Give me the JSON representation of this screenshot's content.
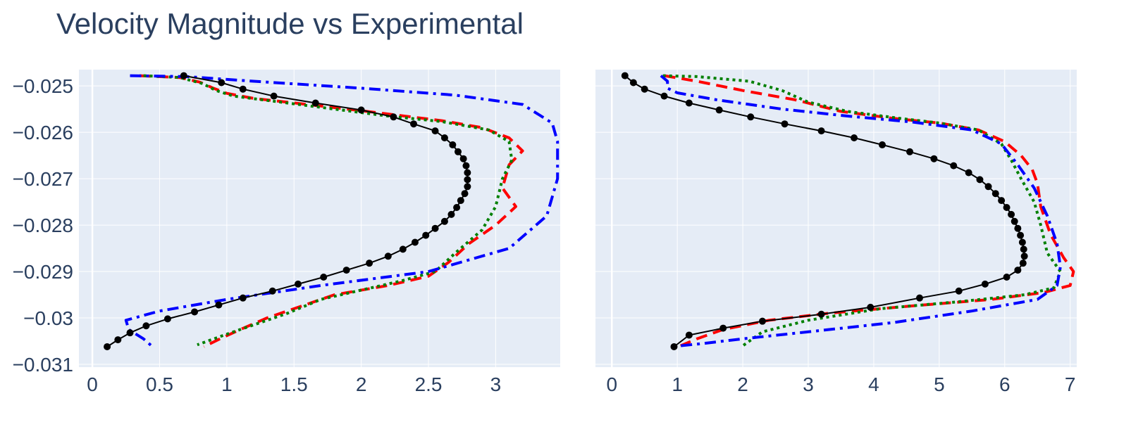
{
  "title": "Velocity Magnitude vs Experimental",
  "colors": {
    "plot_bg": "#e5ecf6",
    "grid": "#ffffff",
    "text": "#2a3f5f",
    "experimental": "#000000",
    "red_dash": "#ff0000",
    "green_dot": "#008000",
    "blue_dashdot": "#0000ff"
  },
  "chart_data": [
    {
      "type": "line",
      "xlim": [
        -0.1,
        3.48
      ],
      "ylim": [
        -0.03106,
        -0.02465
      ],
      "xticks": [
        0,
        0.5,
        1,
        1.5,
        2,
        2.5,
        3
      ],
      "xtick_labels": [
        "0",
        "0.5",
        "1",
        "1.5",
        "2",
        "2.5",
        "3"
      ],
      "yticks": [
        -0.025,
        -0.026,
        -0.027,
        -0.028,
        -0.029,
        -0.03,
        -0.031
      ],
      "ytick_labels": [
        "−0.025",
        "−0.026",
        "−0.027",
        "−0.028",
        "−0.029",
        "−0.03",
        "−0.031"
      ],
      "series": [
        {
          "style": "experimental",
          "points": [
            [
              0.68,
              -0.02478
            ],
            [
              0.96,
              -0.02493
            ],
            [
              1.12,
              -0.02507
            ],
            [
              1.35,
              -0.02522
            ],
            [
              1.66,
              -0.02537
            ],
            [
              2.0,
              -0.02552
            ],
            [
              2.24,
              -0.02567
            ],
            [
              2.39,
              -0.02582
            ],
            [
              2.55,
              -0.02597
            ],
            [
              2.62,
              -0.02612
            ],
            [
              2.68,
              -0.02627
            ],
            [
              2.72,
              -0.02642
            ],
            [
              2.76,
              -0.02657
            ],
            [
              2.78,
              -0.02672
            ],
            [
              2.79,
              -0.02687
            ],
            [
              2.79,
              -0.02702
            ],
            [
              2.79,
              -0.02717
            ],
            [
              2.77,
              -0.02732
            ],
            [
              2.74,
              -0.02747
            ],
            [
              2.71,
              -0.02762
            ],
            [
              2.67,
              -0.02777
            ],
            [
              2.62,
              -0.02792
            ],
            [
              2.55,
              -0.02807
            ],
            [
              2.48,
              -0.02822
            ],
            [
              2.4,
              -0.02837
            ],
            [
              2.31,
              -0.02852
            ],
            [
              2.2,
              -0.02867
            ],
            [
              2.06,
              -0.02882
            ],
            [
              1.89,
              -0.02897
            ],
            [
              1.72,
              -0.02912
            ],
            [
              1.53,
              -0.02927
            ],
            [
              1.34,
              -0.02942
            ],
            [
              1.12,
              -0.02957
            ],
            [
              0.94,
              -0.02972
            ],
            [
              0.76,
              -0.02987
            ],
            [
              0.56,
              -0.03002
            ],
            [
              0.4,
              -0.03017
            ],
            [
              0.28,
              -0.03032
            ],
            [
              0.19,
              -0.03047
            ],
            [
              0.11,
              -0.03062
            ]
          ]
        },
        {
          "style": "red_dash",
          "points": [
            [
              0.35,
              -0.02478
            ],
            [
              0.65,
              -0.02482
            ],
            [
              0.8,
              -0.02492
            ],
            [
              0.9,
              -0.02505
            ],
            [
              1.0,
              -0.02516
            ],
            [
              1.2,
              -0.02527
            ],
            [
              1.6,
              -0.0254
            ],
            [
              2.1,
              -0.02557
            ],
            [
              2.6,
              -0.02575
            ],
            [
              2.9,
              -0.0259
            ],
            [
              3.1,
              -0.02612
            ],
            [
              3.2,
              -0.0264
            ],
            [
              3.1,
              -0.0267
            ],
            [
              3.05,
              -0.0272
            ],
            [
              3.15,
              -0.0276
            ],
            [
              3.0,
              -0.028
            ],
            [
              2.8,
              -0.0284
            ],
            [
              2.65,
              -0.0288
            ],
            [
              2.5,
              -0.0291
            ],
            [
              2.2,
              -0.0293
            ],
            [
              1.8,
              -0.0295
            ],
            [
              1.5,
              -0.0298
            ],
            [
              1.3,
              -0.03
            ],
            [
              1.1,
              -0.03025
            ],
            [
              0.95,
              -0.03045
            ],
            [
              0.83,
              -0.03062
            ]
          ]
        },
        {
          "style": "green_dot",
          "points": [
            [
              0.38,
              -0.02478
            ],
            [
              0.65,
              -0.02482
            ],
            [
              0.82,
              -0.02495
            ],
            [
              0.92,
              -0.0251
            ],
            [
              1.05,
              -0.02522
            ],
            [
              1.4,
              -0.02535
            ],
            [
              1.8,
              -0.0255
            ],
            [
              2.2,
              -0.02565
            ],
            [
              2.6,
              -0.02577
            ],
            [
              2.95,
              -0.02595
            ],
            [
              3.1,
              -0.0262
            ],
            [
              3.12,
              -0.0266
            ],
            [
              3.05,
              -0.027
            ],
            [
              3.0,
              -0.0276
            ],
            [
              2.9,
              -0.0281
            ],
            [
              2.7,
              -0.0286
            ],
            [
              2.55,
              -0.029
            ],
            [
              2.3,
              -0.0292
            ],
            [
              2.0,
              -0.0294
            ],
            [
              1.7,
              -0.0296
            ],
            [
              1.45,
              -0.0299
            ],
            [
              1.2,
              -0.03015
            ],
            [
              1.0,
              -0.03035
            ],
            [
              0.78,
              -0.03058
            ]
          ]
        },
        {
          "style": "blue_dashdot",
          "points": [
            [
              0.28,
              -0.02478
            ],
            [
              0.7,
              -0.0248
            ],
            [
              1.2,
              -0.0249
            ],
            [
              2.0,
              -0.02505
            ],
            [
              2.7,
              -0.0252
            ],
            [
              3.2,
              -0.0254
            ],
            [
              3.42,
              -0.0258
            ],
            [
              3.46,
              -0.0262
            ],
            [
              3.46,
              -0.027
            ],
            [
              3.38,
              -0.0278
            ],
            [
              3.1,
              -0.0285
            ],
            [
              2.5,
              -0.029
            ],
            [
              1.7,
              -0.0293
            ],
            [
              1.0,
              -0.0296
            ],
            [
              0.5,
              -0.02985
            ],
            [
              0.25,
              -0.03005
            ],
            [
              0.27,
              -0.03025
            ],
            [
              0.38,
              -0.03045
            ],
            [
              0.44,
              -0.0306
            ]
          ]
        }
      ]
    },
    {
      "type": "line",
      "xlim": [
        -0.25,
        7.1
      ],
      "ylim": [
        -0.03106,
        -0.02465
      ],
      "xticks": [
        0,
        1,
        2,
        3,
        4,
        5,
        6,
        7
      ],
      "xtick_labels": [
        "0",
        "1",
        "2",
        "3",
        "4",
        "5",
        "6",
        "7"
      ],
      "series": [
        {
          "style": "experimental",
          "points": [
            [
              0.2,
              -0.02478
            ],
            [
              0.33,
              -0.02493
            ],
            [
              0.5,
              -0.02507
            ],
            [
              0.8,
              -0.02522
            ],
            [
              1.18,
              -0.02537
            ],
            [
              1.64,
              -0.02552
            ],
            [
              2.12,
              -0.02567
            ],
            [
              2.64,
              -0.02582
            ],
            [
              3.2,
              -0.02597
            ],
            [
              3.7,
              -0.02612
            ],
            [
              4.13,
              -0.02627
            ],
            [
              4.55,
              -0.02642
            ],
            [
              4.92,
              -0.02657
            ],
            [
              5.22,
              -0.02672
            ],
            [
              5.45,
              -0.02687
            ],
            [
              5.62,
              -0.02702
            ],
            [
              5.75,
              -0.02717
            ],
            [
              5.86,
              -0.02732
            ],
            [
              5.95,
              -0.02747
            ],
            [
              6.03,
              -0.02762
            ],
            [
              6.1,
              -0.02777
            ],
            [
              6.15,
              -0.02792
            ],
            [
              6.2,
              -0.02807
            ],
            [
              6.24,
              -0.02822
            ],
            [
              6.27,
              -0.02837
            ],
            [
              6.29,
              -0.02852
            ],
            [
              6.3,
              -0.02867
            ],
            [
              6.28,
              -0.02882
            ],
            [
              6.2,
              -0.02897
            ],
            [
              6.03,
              -0.02912
            ],
            [
              5.7,
              -0.02927
            ],
            [
              5.3,
              -0.02942
            ],
            [
              4.7,
              -0.02957
            ],
            [
              3.95,
              -0.02977
            ],
            [
              3.2,
              -0.02992
            ],
            [
              2.3,
              -0.03007
            ],
            [
              1.7,
              -0.03022
            ],
            [
              1.18,
              -0.03037
            ],
            [
              0.95,
              -0.03062
            ]
          ]
        },
        {
          "style": "red_dash",
          "points": [
            [
              0.8,
              -0.02478
            ],
            [
              1.3,
              -0.0249
            ],
            [
              2.0,
              -0.0251
            ],
            [
              2.8,
              -0.0253
            ],
            [
              3.5,
              -0.02555
            ],
            [
              4.3,
              -0.0257
            ],
            [
              5.0,
              -0.0258
            ],
            [
              5.6,
              -0.02595
            ],
            [
              6.0,
              -0.0262
            ],
            [
              6.25,
              -0.0265
            ],
            [
              6.42,
              -0.0268
            ],
            [
              6.5,
              -0.0271
            ],
            [
              6.55,
              -0.0276
            ],
            [
              6.7,
              -0.0282
            ],
            [
              6.9,
              -0.0287
            ],
            [
              7.05,
              -0.029
            ],
            [
              7.0,
              -0.0293
            ],
            [
              6.6,
              -0.02945
            ],
            [
              5.8,
              -0.0296
            ],
            [
              4.5,
              -0.02975
            ],
            [
              3.3,
              -0.0299
            ],
            [
              2.4,
              -0.03005
            ],
            [
              1.7,
              -0.03025
            ],
            [
              1.3,
              -0.03045
            ],
            [
              1.05,
              -0.0306
            ]
          ]
        },
        {
          "style": "green_dot",
          "points": [
            [
              0.78,
              -0.02478
            ],
            [
              1.3,
              -0.0248
            ],
            [
              2.1,
              -0.0249
            ],
            [
              2.6,
              -0.0251
            ],
            [
              3.0,
              -0.02535
            ],
            [
              3.6,
              -0.02555
            ],
            [
              4.4,
              -0.0257
            ],
            [
              5.0,
              -0.0258
            ],
            [
              5.6,
              -0.02595
            ],
            [
              5.95,
              -0.02625
            ],
            [
              6.1,
              -0.0266
            ],
            [
              6.25,
              -0.027
            ],
            [
              6.45,
              -0.0275
            ],
            [
              6.55,
              -0.028
            ],
            [
              6.65,
              -0.0286
            ],
            [
              6.85,
              -0.029
            ],
            [
              6.75,
              -0.02935
            ],
            [
              6.3,
              -0.0295
            ],
            [
              5.3,
              -0.02965
            ],
            [
              4.1,
              -0.0298
            ],
            [
              3.0,
              -0.03005
            ],
            [
              2.3,
              -0.0303
            ],
            [
              2.0,
              -0.0306
            ]
          ]
        },
        {
          "style": "blue_dashdot",
          "points": [
            [
              0.75,
              -0.02478
            ],
            [
              0.85,
              -0.0249
            ],
            [
              0.85,
              -0.02505
            ],
            [
              1.0,
              -0.02515
            ],
            [
              1.6,
              -0.0253
            ],
            [
              2.6,
              -0.0255
            ],
            [
              3.6,
              -0.02565
            ],
            [
              4.6,
              -0.02578
            ],
            [
              5.5,
              -0.02595
            ],
            [
              5.95,
              -0.02625
            ],
            [
              6.2,
              -0.0267
            ],
            [
              6.45,
              -0.0272
            ],
            [
              6.65,
              -0.0278
            ],
            [
              6.8,
              -0.0284
            ],
            [
              6.85,
              -0.0289
            ],
            [
              6.8,
              -0.0293
            ],
            [
              6.5,
              -0.0296
            ],
            [
              5.5,
              -0.02985
            ],
            [
              4.3,
              -0.0301
            ],
            [
              3.0,
              -0.0303
            ],
            [
              2.0,
              -0.03045
            ],
            [
              1.4,
              -0.03055
            ],
            [
              1.05,
              -0.0306
            ]
          ]
        }
      ]
    }
  ]
}
